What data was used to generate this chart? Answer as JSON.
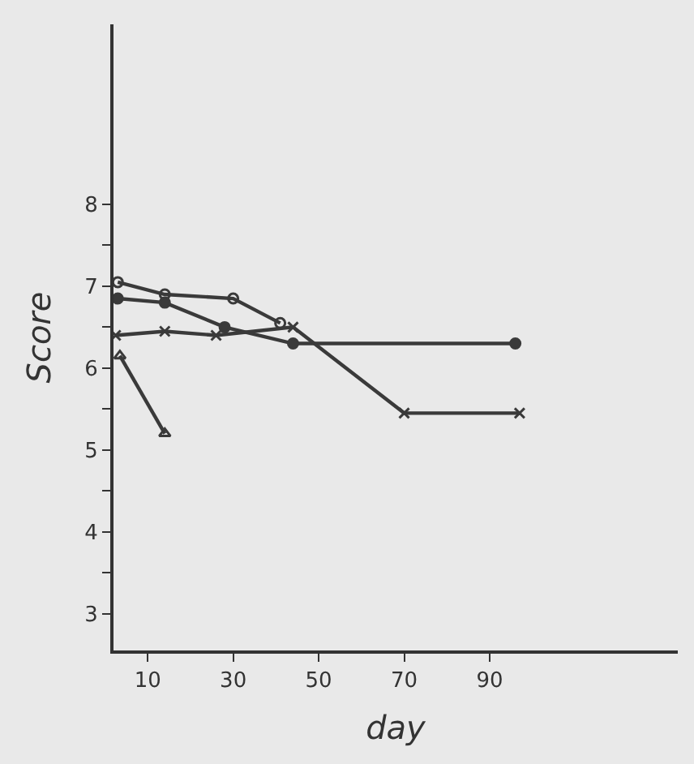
{
  "chart_data": {
    "type": "line",
    "xlabel": "day",
    "ylabel": "Score",
    "xlim": [
      2,
      134
    ],
    "ylim": [
      2.55,
      10.2
    ],
    "xticks": [
      10,
      30,
      50,
      70,
      90
    ],
    "yticks": [
      3,
      {
        "value": 3.5,
        "label": null
      },
      4,
      {
        "value": 4.5,
        "label": null
      },
      5,
      {
        "value": 5.5,
        "label": null
      },
      6,
      {
        "value": 6.5,
        "label": null
      },
      7,
      {
        "value": 7.5,
        "label": null
      },
      8
    ],
    "series": [
      {
        "color": "#3a3a3a",
        "marker": "circle-open",
        "x": [
          3,
          14,
          30,
          41
        ],
        "values": [
          7.05,
          6.9,
          6.85,
          6.55
        ]
      },
      {
        "color": "#3a3a3a",
        "marker": "circle",
        "x": [
          3,
          14,
          28,
          44,
          96
        ],
        "values": [
          6.85,
          6.8,
          6.5,
          6.3,
          6.3
        ]
      },
      {
        "color": "#3a3a3a",
        "marker": "cross",
        "x": [
          2.5,
          14,
          26,
          44,
          70,
          97
        ],
        "values": [
          6.4,
          6.45,
          6.4,
          6.5,
          5.45,
          5.45
        ]
      },
      {
        "color": "#3a3a3a",
        "marker": "triangle",
        "x": [
          3.5,
          14
        ],
        "values": [
          6.15,
          5.2
        ]
      }
    ]
  }
}
